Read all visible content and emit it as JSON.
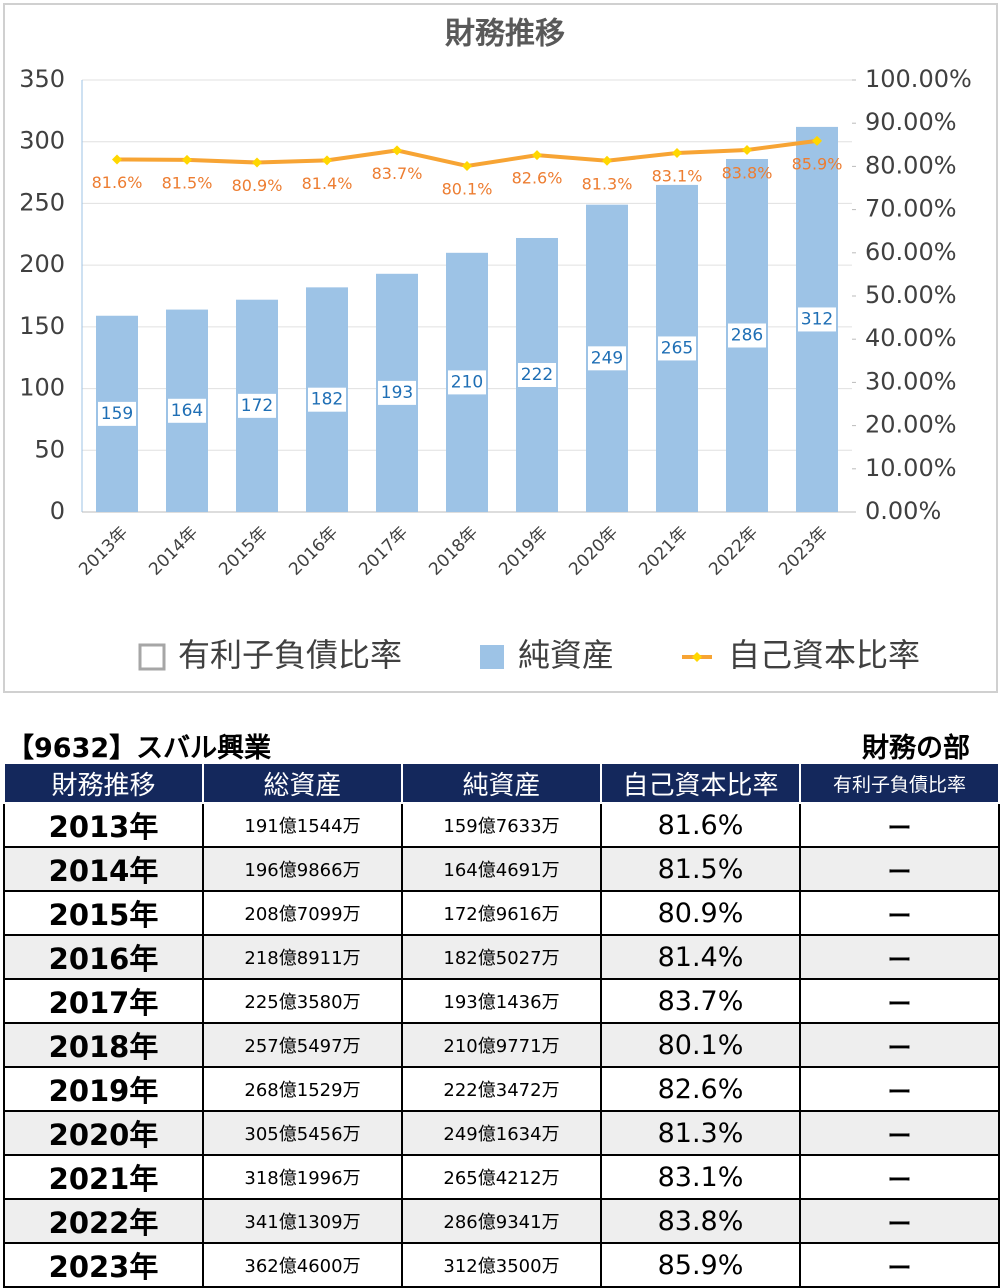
{
  "chart_data": {
    "type": "bar",
    "title": "財務推移",
    "categories": [
      "2013年",
      "2014年",
      "2015年",
      "2016年",
      "2017年",
      "2018年",
      "2019年",
      "2020年",
      "2021年",
      "2022年",
      "2023年"
    ],
    "series": [
      {
        "name": "有利子負債比率",
        "color": "#ffffff",
        "values": [
          null,
          null,
          null,
          null,
          null,
          null,
          null,
          null,
          null,
          null,
          null
        ]
      },
      {
        "name": "純資産",
        "color": "#9dc3e6",
        "values": [
          159,
          164,
          172,
          182,
          193,
          210,
          222,
          249,
          265,
          286,
          312
        ]
      },
      {
        "name": "自己資本比率",
        "type": "line",
        "axis": "y2",
        "color": "#f7a434",
        "marker_color": "#ffd700",
        "values": [
          81.6,
          81.5,
          80.9,
          81.4,
          83.7,
          80.1,
          82.6,
          81.3,
          83.1,
          83.8,
          85.9
        ],
        "value_labels": [
          "81.6%",
          "81.5%",
          "80.9%",
          "81.4%",
          "83.7%",
          "80.1%",
          "82.6%",
          "81.3%",
          "83.1%",
          "83.8%",
          "85.9%"
        ]
      }
    ],
    "ylim": [
      0,
      350
    ],
    "yticks": [
      0,
      50,
      100,
      150,
      200,
      250,
      300,
      350
    ],
    "y2lim": [
      0,
      100
    ],
    "y2ticks": [
      {
        "value": 0,
        "label": "0.00%"
      },
      {
        "value": 10,
        "label": "10.00%"
      },
      {
        "value": 20,
        "label": "20.00%"
      },
      {
        "value": 30,
        "label": "30.00%"
      },
      {
        "value": 40,
        "label": "40.00%"
      },
      {
        "value": 50,
        "label": "50.00%"
      },
      {
        "value": 60,
        "label": "60.00%"
      },
      {
        "value": 70,
        "label": "70.00%"
      },
      {
        "value": 80,
        "label": "80.00%"
      },
      {
        "value": 90,
        "label": "90.00%"
      },
      {
        "value": 100,
        "label": "100.00%"
      }
    ],
    "grid": true,
    "legend": "bottom"
  },
  "header": {
    "company": "【9632】スバル興業",
    "section": "財務の部"
  },
  "table": {
    "columns": [
      "財務推移",
      "総資産",
      "純資産",
      "自己資本比率",
      "有利子負債比率"
    ],
    "rows": [
      [
        "2013年",
        "191億1544万",
        "159億7633万",
        "81.6%",
        "ー"
      ],
      [
        "2014年",
        "196億9866万",
        "164億4691万",
        "81.5%",
        "ー"
      ],
      [
        "2015年",
        "208億7099万",
        "172億9616万",
        "80.9%",
        "ー"
      ],
      [
        "2016年",
        "218億8911万",
        "182億5027万",
        "81.4%",
        "ー"
      ],
      [
        "2017年",
        "225億3580万",
        "193億1436万",
        "83.7%",
        "ー"
      ],
      [
        "2018年",
        "257億5497万",
        "210億9771万",
        "80.1%",
        "ー"
      ],
      [
        "2019年",
        "268億1529万",
        "222億3472万",
        "82.6%",
        "ー"
      ],
      [
        "2020年",
        "305億5456万",
        "249億1634万",
        "81.3%",
        "ー"
      ],
      [
        "2021年",
        "318億1996万",
        "265億4212万",
        "83.1%",
        "ー"
      ],
      [
        "2022年",
        "341億1309万",
        "286億9341万",
        "83.8%",
        "ー"
      ],
      [
        "2023年",
        "362億4600万",
        "312億3500万",
        "85.9%",
        "ー"
      ]
    ]
  }
}
